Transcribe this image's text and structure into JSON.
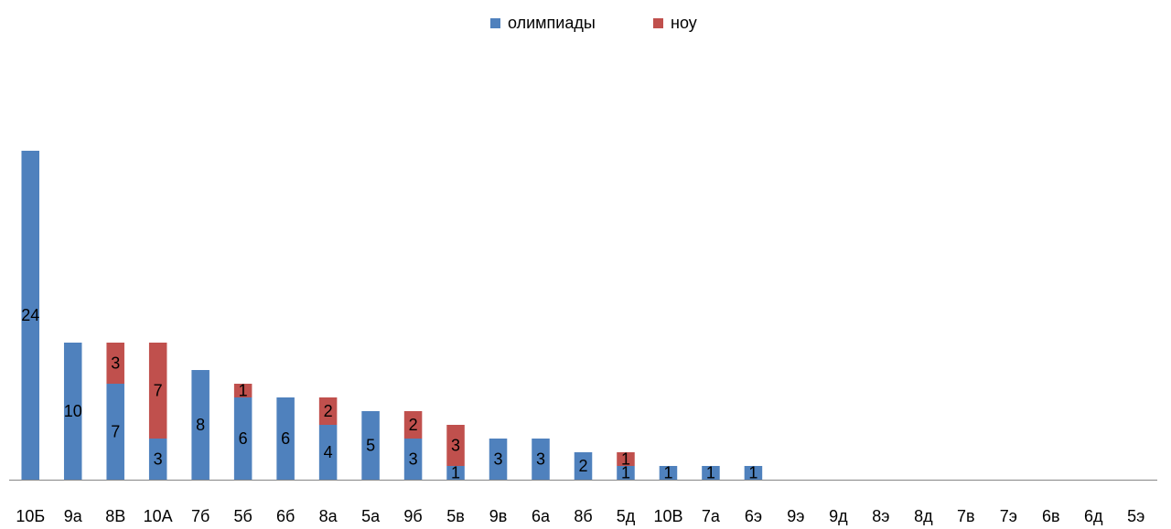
{
  "chart_data": {
    "type": "bar",
    "stacked": true,
    "categories": [
      "10Б",
      "9а",
      "8В",
      "10А",
      "7б",
      "5б",
      "6б",
      "8а",
      "5а",
      "9б",
      "5в",
      "9в",
      "6а",
      "8б",
      "5д",
      "10В",
      "7а",
      "6э",
      "9э",
      "9д",
      "8э",
      "8д",
      "7в",
      "7э",
      "6в",
      "6д",
      "5э"
    ],
    "series": [
      {
        "name": "олимпиады",
        "color": "#4f81bd",
        "values": [
          24,
          10,
          7,
          3,
          8,
          6,
          6,
          4,
          5,
          3,
          1,
          3,
          3,
          2,
          1,
          1,
          1,
          1,
          0,
          0,
          0,
          0,
          0,
          0,
          0,
          0,
          0
        ]
      },
      {
        "name": "ноу",
        "color": "#c0504d",
        "values": [
          0,
          0,
          3,
          7,
          0,
          1,
          0,
          2,
          0,
          2,
          3,
          0,
          0,
          0,
          1,
          0,
          0,
          0,
          0,
          0,
          0,
          0,
          0,
          0,
          0,
          0,
          0
        ]
      }
    ],
    "ylim": [
      0,
      24
    ],
    "legend_position": "top-center",
    "grid": false
  }
}
